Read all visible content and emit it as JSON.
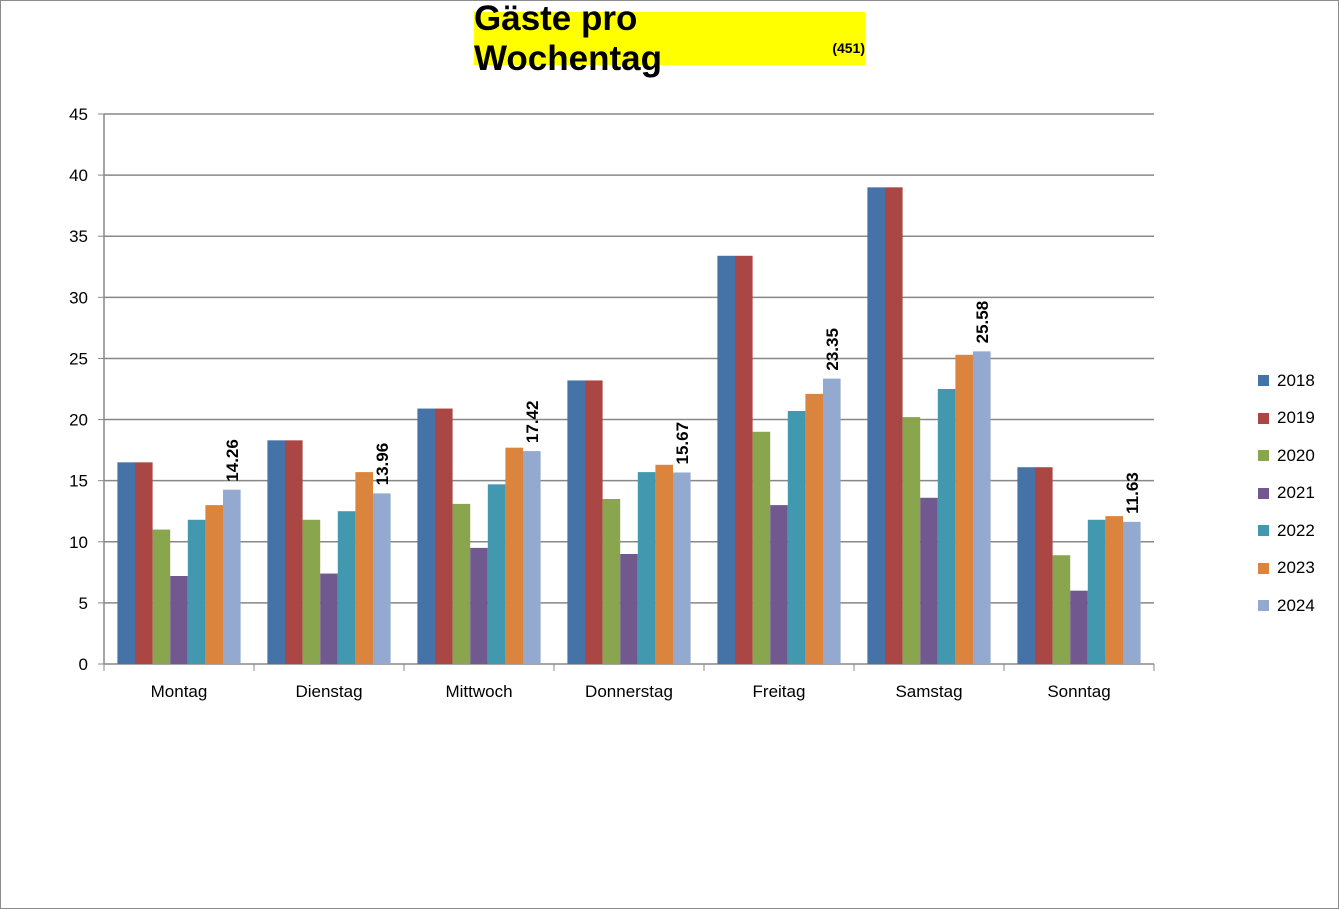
{
  "chart_data": {
    "type": "bar",
    "title": "Gäste pro Wochentag",
    "title_suffix": "(451)",
    "xlabel": "",
    "ylabel": "",
    "ylim": [
      0,
      45
    ],
    "yticks": [
      "0",
      "5",
      "10",
      "15",
      "20",
      "25",
      "30",
      "35",
      "40",
      "45"
    ],
    "grid": true,
    "legend_position": "right",
    "categories": [
      "Montag",
      "Dienstag",
      "Mittwoch",
      "Donnerstag",
      "Freitag",
      "Samstag",
      "Sonntag"
    ],
    "series": [
      {
        "name": "2018",
        "color": "#4572a7",
        "values": [
          16.5,
          18.3,
          20.9,
          23.2,
          33.4,
          39.0,
          16.1
        ]
      },
      {
        "name": "2019",
        "color": "#aa4643",
        "values": [
          16.5,
          18.3,
          20.9,
          23.2,
          33.4,
          39.0,
          16.1
        ]
      },
      {
        "name": "2020",
        "color": "#89a54e",
        "values": [
          11.0,
          11.8,
          13.1,
          13.5,
          19.0,
          20.2,
          8.9
        ]
      },
      {
        "name": "2021",
        "color": "#71588f",
        "values": [
          7.2,
          7.4,
          9.5,
          9.0,
          13.0,
          13.6,
          6.0
        ]
      },
      {
        "name": "2022",
        "color": "#4198af",
        "values": [
          11.8,
          12.5,
          14.7,
          15.7,
          20.7,
          22.5,
          11.8
        ]
      },
      {
        "name": "2023",
        "color": "#db843d",
        "values": [
          13.0,
          15.7,
          17.7,
          16.3,
          22.1,
          25.3,
          12.1
        ]
      },
      {
        "name": "2024",
        "color": "#93a9cf",
        "values": [
          14.26,
          13.96,
          17.42,
          15.67,
          23.35,
          25.58,
          11.63
        ]
      }
    ],
    "data_labels": [
      "14.26",
      "13.96",
      "17.42",
      "15.67",
      "23.35",
      "25.58",
      "11.63"
    ]
  }
}
